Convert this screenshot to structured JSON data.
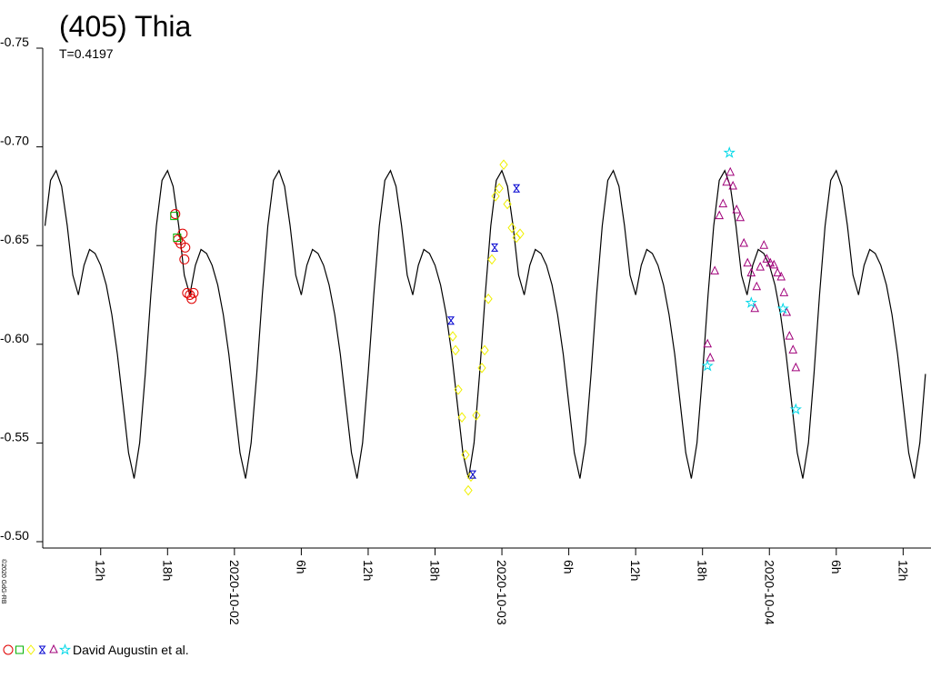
{
  "chart_data": {
    "type": "lightcurve",
    "title": "(405) Thia",
    "subtitle": "T=0.4197",
    "credit": "©2020 GdG-RB",
    "ylim": [
      -0.75,
      -0.5
    ],
    "y_inverted": true,
    "yticks": [
      {
        "value": -0.75,
        "label": "-0.75"
      },
      {
        "value": -0.7,
        "label": "-0.70"
      },
      {
        "value": -0.65,
        "label": "-0.65"
      },
      {
        "value": -0.6,
        "label": "-0.60"
      },
      {
        "value": -0.55,
        "label": "-0.55"
      },
      {
        "value": -0.5,
        "label": "-0.50"
      }
    ],
    "xlim": [
      -17.2,
      62.5
    ],
    "xticks": [
      {
        "value": -12,
        "label": "12h"
      },
      {
        "value": -6,
        "label": "18h"
      },
      {
        "value": 0,
        "label": "2020-10-02"
      },
      {
        "value": 6,
        "label": "6h"
      },
      {
        "value": 12,
        "label": "12h"
      },
      {
        "value": 18,
        "label": "18h"
      },
      {
        "value": 24,
        "label": "2020-10-03"
      },
      {
        "value": 30,
        "label": "6h"
      },
      {
        "value": 36,
        "label": "12h"
      },
      {
        "value": 42,
        "label": "18h"
      },
      {
        "value": 48,
        "label": "2020-10-04"
      },
      {
        "value": 54,
        "label": "6h"
      },
      {
        "value": 60,
        "label": "12h"
      }
    ],
    "legend": "David Augustin et al.",
    "model": {
      "color": "#000000",
      "x": [
        -17,
        -16.5,
        -16,
        -15.5,
        -15,
        -14.5,
        -14,
        -13.5,
        -13,
        -12.5,
        -12,
        -11.5,
        -11,
        -10.5,
        -10,
        -9.5,
        -9,
        -8.5,
        -8,
        -7.5,
        -7,
        -6.5,
        -6,
        -5.5,
        -5,
        -4.5,
        -4,
        -3.5,
        -3,
        -2.5,
        -2,
        -1.5,
        -1,
        -0.5,
        0,
        0.5,
        1,
        1.5,
        2,
        2.5,
        3,
        3.5,
        4,
        4.5,
        5,
        5.5,
        6,
        6.5,
        7,
        7.5,
        8,
        8.5,
        9,
        9.5,
        10,
        10.5,
        11,
        11.5,
        12,
        12.5,
        13,
        13.5,
        14,
        14.5,
        15,
        15.5,
        16,
        16.5,
        17,
        17.5,
        18,
        18.5,
        19,
        19.5,
        20,
        20.5,
        21,
        21.5,
        22,
        22.5,
        23,
        23.5,
        24,
        24.5,
        25,
        25.5,
        26,
        26.5,
        27,
        27.5,
        28,
        28.5,
        29,
        29.5,
        30,
        30.5,
        31,
        31.5,
        32,
        32.5,
        33,
        33.5,
        34,
        34.5,
        35,
        35.5,
        36,
        36.5,
        37,
        37.5,
        38,
        38.5,
        39,
        39.5,
        40,
        40.5,
        41,
        41.5,
        42,
        42.5,
        43,
        43.5,
        44,
        44.5,
        45,
        45.5,
        46,
        46.5,
        47,
        47.5,
        48,
        48.5,
        49,
        49.5,
        50,
        50.5,
        51,
        51.5,
        52,
        52.5,
        53,
        53.5,
        54,
        54.5,
        55,
        55.5,
        56,
        56.5,
        57,
        57.5,
        58,
        58.5,
        59,
        59.5,
        60,
        60.5,
        61,
        61.5,
        62
      ],
      "values": [
        -0.66,
        -0.683,
        -0.688,
        -0.68,
        -0.66,
        -0.635,
        -0.625,
        -0.64,
        -0.648,
        -0.646,
        -0.64,
        -0.63,
        -0.615,
        -0.595,
        -0.57,
        -0.545,
        -0.532,
        -0.55,
        -0.585,
        -0.625,
        -0.66,
        -0.683,
        -0.688,
        -0.68,
        -0.66,
        -0.635,
        -0.625,
        -0.64,
        -0.648,
        -0.646,
        -0.64,
        -0.63,
        -0.615,
        -0.595,
        -0.57,
        -0.545,
        -0.532,
        -0.55,
        -0.585,
        -0.625,
        -0.66,
        -0.683,
        -0.688,
        -0.68,
        -0.66,
        -0.635,
        -0.625,
        -0.64,
        -0.648,
        -0.646,
        -0.64,
        -0.63,
        -0.615,
        -0.595,
        -0.57,
        -0.545,
        -0.532,
        -0.55,
        -0.585,
        -0.625,
        -0.66,
        -0.683,
        -0.688,
        -0.68,
        -0.66,
        -0.635,
        -0.625,
        -0.64,
        -0.648,
        -0.646,
        -0.64,
        -0.63,
        -0.615,
        -0.595,
        -0.57,
        -0.545,
        -0.532,
        -0.55,
        -0.585,
        -0.625,
        -0.66,
        -0.683,
        -0.688,
        -0.68,
        -0.66,
        -0.635,
        -0.625,
        -0.64,
        -0.648,
        -0.646,
        -0.64,
        -0.63,
        -0.615,
        -0.595,
        -0.57,
        -0.545,
        -0.532,
        -0.55,
        -0.585,
        -0.625,
        -0.66,
        -0.683,
        -0.688,
        -0.68,
        -0.66,
        -0.635,
        -0.625,
        -0.64,
        -0.648,
        -0.646,
        -0.64,
        -0.63,
        -0.615,
        -0.595,
        -0.57,
        -0.545,
        -0.532,
        -0.55,
        -0.585,
        -0.625,
        -0.66,
        -0.683,
        -0.688,
        -0.68,
        -0.66,
        -0.635,
        -0.625,
        -0.64,
        -0.648,
        -0.646,
        -0.64,
        -0.63,
        -0.615,
        -0.595,
        -0.57,
        -0.545,
        -0.532,
        -0.55,
        -0.585,
        -0.625,
        -0.66,
        -0.683,
        -0.688,
        -0.68,
        -0.66,
        -0.635,
        -0.625,
        -0.64,
        -0.648,
        -0.646,
        -0.64,
        -0.63,
        -0.615,
        -0.595,
        -0.57,
        -0.545,
        -0.532,
        -0.55,
        -0.585
      ]
    },
    "series": [
      {
        "marker": "circle",
        "color": "#e00000",
        "x": [
          -5.31,
          -5.06,
          -4.82,
          -4.65,
          -4.41,
          -4.49,
          -4.24,
          -4.0,
          -3.84,
          -3.67
        ],
        "values": [
          -0.666,
          -0.653,
          -0.651,
          -0.656,
          -0.649,
          -0.643,
          -0.626,
          -0.625,
          -0.623,
          -0.626
        ]
      },
      {
        "marker": "square",
        "color": "#00b000",
        "x": [
          -5.39,
          -5.14
        ],
        "values": [
          -0.665,
          -0.654
        ]
      },
      {
        "marker": "diamond",
        "color": "#f0f000",
        "x": [
          19.59,
          19.84,
          20.08,
          20.41,
          20.73,
          20.98,
          21.22,
          21.71,
          22.2,
          22.45,
          22.78,
          23.1,
          23.43,
          23.76,
          24.16,
          24.49,
          24.9,
          25.31,
          25.63
        ],
        "values": [
          -0.604,
          -0.597,
          -0.577,
          -0.563,
          -0.544,
          -0.526,
          -0.533,
          -0.564,
          -0.588,
          -0.597,
          -0.623,
          -0.643,
          -0.675,
          -0.679,
          -0.691,
          -0.671,
          -0.659,
          -0.654,
          -0.656
        ]
      },
      {
        "marker": "hourglass",
        "color": "#0000d0",
        "x": [
          19.43,
          21.39,
          23.35,
          25.31
        ],
        "values": [
          -0.612,
          -0.534,
          -0.649,
          -0.679
        ]
      },
      {
        "marker": "triangle",
        "color": "#a0007a",
        "x": [
          42.45,
          42.69,
          43.1,
          43.51,
          43.84,
          44.16,
          44.49,
          44.73,
          45.06,
          45.39,
          45.71,
          46.04,
          46.37,
          46.69,
          46.86,
          47.18,
          47.51,
          47.76,
          48.08,
          48.41,
          48.73,
          49.06,
          49.31,
          49.55,
          49.8,
          50.12,
          50.37
        ],
        "values": [
          -0.6,
          -0.593,
          -0.637,
          -0.665,
          -0.671,
          -0.682,
          -0.687,
          -0.68,
          -0.668,
          -0.664,
          -0.651,
          -0.641,
          -0.636,
          -0.618,
          -0.629,
          -0.639,
          -0.65,
          -0.643,
          -0.641,
          -0.64,
          -0.636,
          -0.634,
          -0.626,
          -0.616,
          -0.604,
          -0.597,
          -0.588
        ]
      },
      {
        "marker": "star",
        "color": "#00d8e8",
        "x": [
          42.45,
          44.41,
          46.37,
          49.22,
          50.37
        ],
        "values": [
          -0.589,
          -0.697,
          -0.621,
          -0.618,
          -0.567
        ]
      }
    ]
  }
}
